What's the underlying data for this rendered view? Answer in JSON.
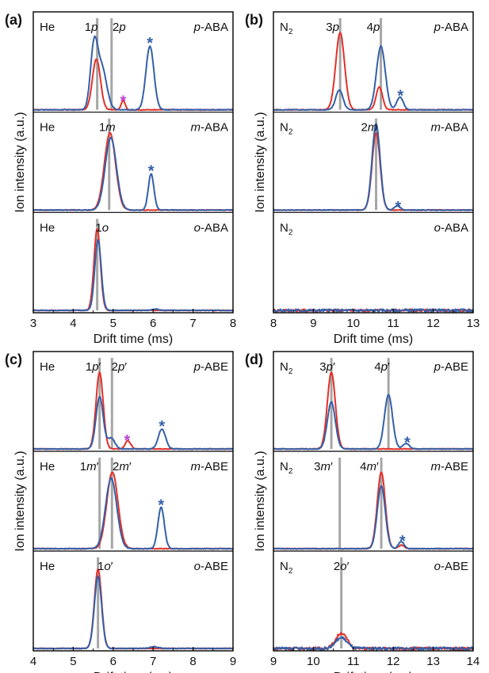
{
  "colors": {
    "red": "#e2312a",
    "blue": "#3460a8",
    "gray": "#a6a6a6",
    "magenta": "#c13fd1"
  },
  "chart_data": [
    {
      "type": "line",
      "panel": "(a)",
      "xlabel": "Drift time (ms)",
      "ylabel": "Ion intensity (a.u.)",
      "xlim": [
        3,
        8
      ],
      "xticks": [
        3,
        4,
        5,
        6,
        7,
        8
      ],
      "subplots": [
        {
          "gas": "He",
          "gas_sub": "",
          "sample": "p-ABA",
          "sample_prefix": "p",
          "sample_suffix": "-ABA",
          "vlines": [
            4.6,
            4.96
          ],
          "peak_labels": [
            {
              "main": "1",
              "italic": "p",
              "prime": "",
              "x": 4.45
            },
            {
              "main": "2",
              "italic": "p",
              "prime": "",
              "x": 5.15
            }
          ],
          "stars": [
            {
              "x": 5.92,
              "y": 0.78,
              "color": "blue"
            },
            {
              "x": 5.25,
              "y": 0.14,
              "color": "magenta"
            }
          ],
          "red_peaks": [
            [
              4.58,
              0.56,
              0.1
            ],
            [
              5.25,
              0.1,
              0.05
            ]
          ],
          "blue_peaks": [
            [
              4.52,
              0.68,
              0.09
            ],
            [
              4.72,
              0.45,
              0.12
            ],
            [
              5.92,
              0.7,
              0.1
            ]
          ]
        },
        {
          "gas": "He",
          "gas_sub": "",
          "sample": "m-ABA",
          "sample_prefix": "m",
          "sample_suffix": "-ABA",
          "vlines": [
            4.9
          ],
          "peak_labels": [
            {
              "main": "1",
              "italic": "m",
              "prime": "",
              "x": 4.85
            }
          ],
          "stars": [
            {
              "x": 5.95,
              "y": 0.48,
              "color": "blue"
            }
          ],
          "red_peaks": [
            [
              4.92,
              0.85,
              0.14
            ]
          ],
          "blue_peaks": [
            [
              4.94,
              0.8,
              0.14
            ],
            [
              5.95,
              0.4,
              0.07
            ]
          ]
        },
        {
          "gas": "He",
          "gas_sub": "",
          "sample": "o-ABA",
          "sample_prefix": "o",
          "sample_suffix": "-ABA",
          "vlines": [
            4.6
          ],
          "peak_labels": [
            {
              "main": "1",
              "italic": "o",
              "prime": "",
              "x": 4.72
            }
          ],
          "stars": [],
          "red_peaks": [
            [
              4.6,
              0.9,
              0.08
            ]
          ],
          "blue_peaks": [
            [
              4.62,
              0.78,
              0.08
            ],
            [
              6.05,
              0.015,
              0.08
            ]
          ]
        }
      ]
    },
    {
      "type": "line",
      "panel": "(b)",
      "xlabel": "Drift time (ms)",
      "ylabel": "Ion intensity (a.u.)",
      "xlim": [
        8,
        13
      ],
      "xticks": [
        8,
        9,
        10,
        11,
        12,
        13
      ],
      "subplots": [
        {
          "gas": "N",
          "gas_sub": "2",
          "sample": "p-ABA",
          "sample_prefix": "p",
          "sample_suffix": "-ABA",
          "vlines": [
            9.67,
            10.69
          ],
          "peak_labels": [
            {
              "main": "3",
              "italic": "p",
              "prime": "",
              "x": 9.48
            },
            {
              "main": "4",
              "italic": "p",
              "prime": "",
              "x": 10.5
            }
          ],
          "stars": [
            {
              "x": 11.18,
              "y": 0.2,
              "color": "blue"
            }
          ],
          "red_peaks": [
            [
              9.67,
              0.85,
              0.11
            ],
            [
              10.65,
              0.25,
              0.08
            ]
          ],
          "blue_peaks": [
            [
              9.65,
              0.22,
              0.09
            ],
            [
              10.69,
              0.7,
              0.11
            ],
            [
              11.17,
              0.14,
              0.08
            ]
          ]
        },
        {
          "gas": "N",
          "gas_sub": "2",
          "sample": "m-ABA",
          "sample_prefix": "m",
          "sample_suffix": "-ABA",
          "vlines": [
            10.57
          ],
          "peak_labels": [
            {
              "main": "2",
              "italic": "m",
              "prime": "",
              "x": 10.4
            }
          ],
          "stars": [
            {
              "x": 11.12,
              "y": 0.08,
              "color": "blue"
            }
          ],
          "red_peaks": [
            [
              10.57,
              0.85,
              0.1
            ]
          ],
          "blue_peaks": [
            [
              10.57,
              0.95,
              0.1
            ],
            [
              11.1,
              0.05,
              0.07
            ]
          ]
        },
        {
          "gas": "N",
          "gas_sub": "2",
          "sample": "o-ABA",
          "sample_prefix": "o",
          "sample_suffix": "-ABA",
          "vlines": [],
          "peak_labels": [],
          "stars": [],
          "red_peaks": [],
          "blue_peaks": []
        }
      ]
    },
    {
      "type": "line",
      "panel": "(c)",
      "xlabel": "Drift time (ms)",
      "ylabel": "Ion intensity (a.u.)",
      "xlim": [
        4,
        9
      ],
      "xticks": [
        4,
        5,
        6,
        7,
        8,
        9
      ],
      "subplots": [
        {
          "gas": "He",
          "gas_sub": "",
          "sample": "p-ABE",
          "sample_prefix": "p",
          "sample_suffix": "-ABE",
          "vlines": [
            5.66,
            5.97
          ],
          "peak_labels": [
            {
              "main": "1",
              "italic": "p",
              "prime": "′",
              "x": 5.5
            },
            {
              "main": "2",
              "italic": "p",
              "prime": "′",
              "x": 6.15
            }
          ],
          "stars": [
            {
              "x": 7.22,
              "y": 0.3,
              "color": "blue"
            },
            {
              "x": 6.35,
              "y": 0.14,
              "color": "magenta"
            }
          ],
          "red_peaks": [
            [
              5.66,
              0.85,
              0.09
            ],
            [
              6.37,
              0.09,
              0.07
            ]
          ],
          "blue_peaks": [
            [
              5.66,
              0.58,
              0.09
            ],
            [
              5.95,
              0.12,
              0.09
            ],
            [
              7.22,
              0.22,
              0.09
            ]
          ]
        },
        {
          "gas": "He",
          "gas_sub": "",
          "sample": "m-ABE",
          "sample_prefix": "m",
          "sample_suffix": "-ABE",
          "vlines": [
            5.66,
            5.97
          ],
          "peak_labels": [
            {
              "main": "1",
              "italic": "m",
              "prime": "′",
              "x": 5.4
            },
            {
              "main": "2",
              "italic": "m",
              "prime": "′",
              "x": 6.22
            }
          ],
          "stars": [
            {
              "x": 7.2,
              "y": 0.53,
              "color": "blue"
            }
          ],
          "red_peaks": [
            [
              5.98,
              0.85,
              0.14
            ]
          ],
          "blue_peaks": [
            [
              5.95,
              0.78,
              0.14
            ],
            [
              7.2,
              0.46,
              0.08
            ]
          ]
        },
        {
          "gas": "He",
          "gas_sub": "",
          "sample": "o-ABE",
          "sample_prefix": "o",
          "sample_suffix": "-ABE",
          "vlines": [
            5.62
          ],
          "peak_labels": [
            {
              "main": "1",
              "italic": "o",
              "prime": "′",
              "x": 5.8
            }
          ],
          "stars": [],
          "red_peaks": [
            [
              5.62,
              0.88,
              0.09
            ]
          ],
          "blue_peaks": [
            [
              5.62,
              0.8,
              0.09
            ],
            [
              7.02,
              0.02,
              0.1
            ]
          ]
        }
      ]
    },
    {
      "type": "line",
      "panel": "(d)",
      "xlabel": "Drift time (ms)",
      "ylabel": "Ion intensity (a.u.)",
      "xlim": [
        9,
        14
      ],
      "xticks": [
        9,
        10,
        11,
        12,
        13,
        14
      ],
      "subplots": [
        {
          "gas": "N",
          "gas_sub": "2",
          "sample": "p-ABE",
          "sample_prefix": "p",
          "sample_suffix": "-ABE",
          "vlines": [
            10.45,
            11.88
          ],
          "peak_labels": [
            {
              "main": "3",
              "italic": "p",
              "prime": "′",
              "x": 10.35
            },
            {
              "main": "4",
              "italic": "p",
              "prime": "′",
              "x": 11.72
            }
          ],
          "stars": [
            {
              "x": 12.35,
              "y": 0.12,
              "color": "blue"
            }
          ],
          "red_peaks": [
            [
              10.45,
              0.85,
              0.1
            ]
          ],
          "blue_peaks": [
            [
              10.45,
              0.52,
              0.1
            ],
            [
              11.88,
              0.6,
              0.1
            ],
            [
              12.32,
              0.06,
              0.08
            ]
          ]
        },
        {
          "gas": "N",
          "gas_sub": "2",
          "sample": "m-ABE",
          "sample_prefix": "m",
          "sample_suffix": "-ABE",
          "vlines": [
            10.66,
            11.7
          ],
          "peak_labels": [
            {
              "main": "3",
              "italic": "m",
              "prime": "′",
              "x": 10.25
            },
            {
              "main": "4",
              "italic": "m",
              "prime": "′",
              "x": 11.4
            }
          ],
          "stars": [
            {
              "x": 12.23,
              "y": 0.13,
              "color": "blue"
            }
          ],
          "red_peaks": [
            [
              11.7,
              0.85,
              0.1
            ],
            [
              12.2,
              0.04,
              0.07
            ]
          ],
          "blue_peaks": [
            [
              11.7,
              0.7,
              0.1
            ],
            [
              12.2,
              0.08,
              0.07
            ]
          ]
        },
        {
          "gas": "N",
          "gas_sub": "2",
          "sample": "o-ABE",
          "sample_prefix": "o",
          "sample_suffix": "-ABE",
          "vlines": [
            10.7
          ],
          "peak_labels": [
            {
              "main": "2",
              "italic": "o",
              "prime": "′",
              "x": 10.7
            }
          ],
          "stars": [],
          "red_peaks": [
            [
              10.7,
              0.17,
              0.14
            ]
          ],
          "blue_peaks": [
            [
              10.7,
              0.12,
              0.14
            ]
          ]
        }
      ]
    }
  ]
}
